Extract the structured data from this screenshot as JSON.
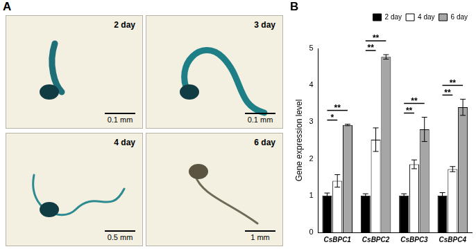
{
  "panel_labels": [
    "A",
    "B"
  ],
  "images": [
    {
      "label": "2 day",
      "scale_bar": "0.1 mm"
    },
    {
      "label": "3 day",
      "scale_bar": "0.1 mm"
    },
    {
      "label": "4 day",
      "scale_bar": "0.5 mm"
    },
    {
      "label": "6 day",
      "scale_bar": "1 mm"
    }
  ],
  "chart_data": {
    "type": "bar",
    "y_label": "Gene expression level",
    "categories": [
      "CsBPC1",
      "CsBPC2",
      "CsBPC3",
      "CsBPC4"
    ],
    "series": [
      {
        "name": "2 day",
        "color": "#000000",
        "values": [
          1.0,
          1.0,
          1.0,
          1.0
        ],
        "errors": [
          0.07,
          0.05,
          0.05,
          0.08
        ]
      },
      {
        "name": "4 day",
        "color": "#ffffff",
        "values": [
          1.4,
          2.52,
          1.85,
          1.72
        ],
        "errors": [
          0.17,
          0.32,
          0.12,
          0.07
        ]
      },
      {
        "name": "6 day",
        "color": "#a6a6a6",
        "values": [
          2.92,
          4.77,
          2.8,
          3.4
        ],
        "errors": [
          0.02,
          0.06,
          0.33,
          0.22
        ]
      }
    ],
    "ylim": [
      0,
      5
    ],
    "yticks": [
      0,
      1,
      2,
      3,
      4,
      5
    ],
    "grid": false,
    "legend": "upper right",
    "annotations": [
      {
        "category": "CsBPC1",
        "from": "2 day",
        "to": "4 day",
        "label": "*"
      },
      {
        "category": "CsBPC1",
        "from": "2 day",
        "to": "6 day",
        "label": "**"
      },
      {
        "category": "CsBPC2",
        "from": "2 day",
        "to": "4 day",
        "label": "**"
      },
      {
        "category": "CsBPC2",
        "from": "2 day",
        "to": "6 day",
        "label": "**"
      },
      {
        "category": "CsBPC3",
        "from": "2 day",
        "to": "4 day",
        "label": "**"
      },
      {
        "category": "CsBPC3",
        "from": "2 day",
        "to": "6 day",
        "label": "**"
      },
      {
        "category": "CsBPC4",
        "from": "2 day",
        "to": "4 day",
        "label": "**"
      },
      {
        "category": "CsBPC4",
        "from": "2 day",
        "to": "6 day",
        "label": "**"
      }
    ]
  }
}
